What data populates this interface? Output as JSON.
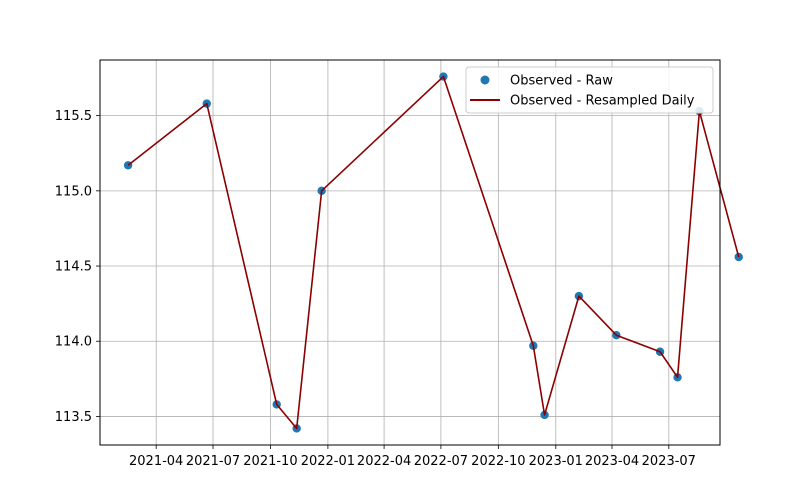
{
  "chart_data": {
    "type": "line",
    "title": "",
    "xlabel": "",
    "ylabel": "",
    "grid": true,
    "legend_position": "top-right",
    "x_axis": {
      "type": "date",
      "range": [
        "2021-01-01",
        "2023-09-21"
      ],
      "ticks": [
        "2021-04-01",
        "2021-07-01",
        "2021-10-01",
        "2022-01-01",
        "2022-04-01",
        "2022-07-01",
        "2022-10-01",
        "2023-01-01",
        "2023-04-01",
        "2023-07-01"
      ],
      "tick_labels": [
        "2021-04",
        "2021-07",
        "2021-10",
        "2022-01",
        "2022-04",
        "2022-07",
        "2022-10",
        "2023-01",
        "2023-04",
        "2023-07"
      ]
    },
    "y_axis": {
      "range": [
        113.31,
        115.87
      ],
      "ticks": [
        113.5,
        114.0,
        114.5,
        115.0,
        115.5
      ],
      "tick_labels": [
        "113.5",
        "114.0",
        "114.5",
        "115.0",
        "115.5"
      ]
    },
    "series": [
      {
        "name": "Observed - Raw",
        "style": "scatter",
        "color": "#1f77b4",
        "points": [
          {
            "x": "2021-02-15",
            "y": 115.17
          },
          {
            "x": "2021-06-21",
            "y": 115.58
          },
          {
            "x": "2021-10-11",
            "y": 113.58
          },
          {
            "x": "2021-11-12",
            "y": 113.42
          },
          {
            "x": "2021-12-22",
            "y": 115.0
          },
          {
            "x": "2022-07-05",
            "y": 115.76
          },
          {
            "x": "2022-11-26",
            "y": 113.97
          },
          {
            "x": "2022-12-14",
            "y": 113.51
          },
          {
            "x": "2023-02-07",
            "y": 114.3
          },
          {
            "x": "2023-04-08",
            "y": 114.04
          },
          {
            "x": "2023-06-17",
            "y": 113.93
          },
          {
            "x": "2023-07-15",
            "y": 113.76
          },
          {
            "x": "2023-08-19",
            "y": 115.53
          },
          {
            "x": "2023-10-21",
            "y": 114.56
          }
        ]
      },
      {
        "name": "Observed - Resampled Daily",
        "style": "line",
        "color": "#8b0000",
        "points": [
          {
            "x": "2021-02-15",
            "y": 115.17
          },
          {
            "x": "2021-06-21",
            "y": 115.58
          },
          {
            "x": "2021-10-11",
            "y": 113.58
          },
          {
            "x": "2021-11-12",
            "y": 113.42
          },
          {
            "x": "2021-12-22",
            "y": 115.0
          },
          {
            "x": "2022-07-05",
            "y": 115.76
          },
          {
            "x": "2022-11-26",
            "y": 113.97
          },
          {
            "x": "2022-12-14",
            "y": 113.51
          },
          {
            "x": "2023-02-07",
            "y": 114.3
          },
          {
            "x": "2023-04-08",
            "y": 114.04
          },
          {
            "x": "2023-06-17",
            "y": 113.93
          },
          {
            "x": "2023-07-15",
            "y": 113.76
          },
          {
            "x": "2023-08-19",
            "y": 115.53
          },
          {
            "x": "2023-10-21",
            "y": 114.56
          }
        ]
      }
    ]
  }
}
